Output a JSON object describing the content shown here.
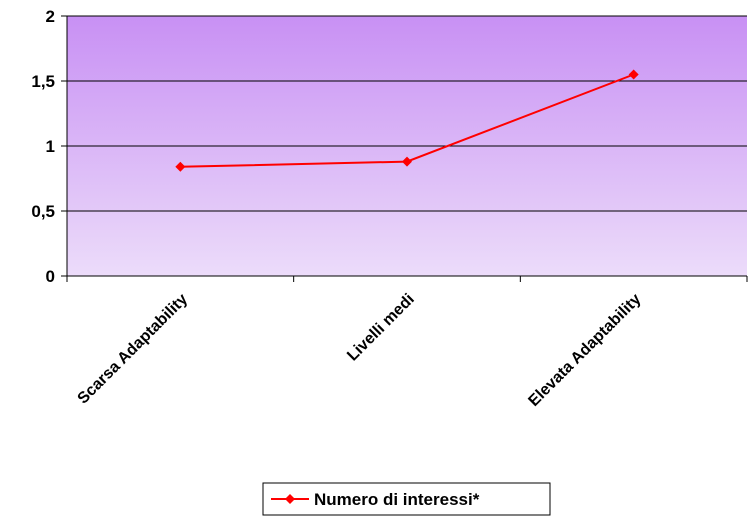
{
  "chart_data": {
    "type": "line",
    "categories": [
      "Scarsa Adaptability",
      "Livelli medi",
      "Elevata Adaptability"
    ],
    "series": [
      {
        "name": "Numero di interessi*",
        "values": [
          0.84,
          0.88,
          1.55
        ]
      }
    ],
    "ylim": [
      0,
      2
    ],
    "yticks": [
      0,
      0.5,
      1,
      1.5,
      2
    ],
    "ytick_labels": [
      "0",
      "0,5",
      "1",
      "1,5",
      "2"
    ],
    "grid": true,
    "legend_position": "bottom",
    "colors": {
      "series": "#ff0000",
      "plot_top": "#c890f4",
      "plot_bottom": "#ecdcfa"
    }
  }
}
